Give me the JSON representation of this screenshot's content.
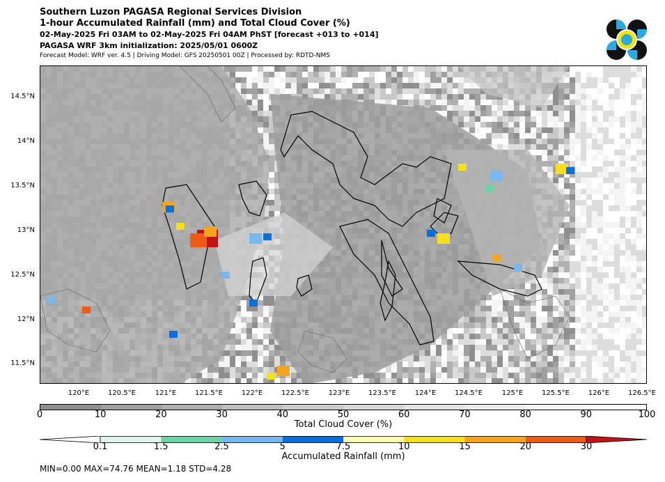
{
  "header": {
    "title": "Southern Luzon PAGASA Regional Services Division",
    "subtitle": "1-hour Accumulated Rainfall (mm) and Total Cloud Cover (%)",
    "period": "02-May-2025 Fri 03AM to 02-May-2025 Fri 04AM PhST [forecast +013 to +014]",
    "init": "PAGASA WRF 3km initialization: 2025/05/01 0600Z",
    "model": "Forecast Model: WRF ver. 4.5 | Driving Model: GFS 20250501 00Z | Processed by: RDTD-NMS"
  },
  "logo": {
    "name": "pagasa-logo",
    "colors": [
      "#000000",
      "#29aae1",
      "#f5e400"
    ]
  },
  "map": {
    "lat_labels": [
      "14.5°N",
      "14°N",
      "13.5°N",
      "13°N",
      "12.5°N",
      "12°N",
      "11.5°N"
    ],
    "lon_labels": [
      "120°E",
      "120.5°E",
      "121°E",
      "121.5°E",
      "122°E",
      "122.5°E",
      "123°E",
      "123.5°E",
      "124°E",
      "124.5°E",
      "125°E",
      "125.5°E",
      "126°E",
      "126.5°E"
    ]
  },
  "cloud_colorbar": {
    "ticks": [
      "0",
      "10",
      "20",
      "30",
      "40",
      "50",
      "60",
      "70",
      "80",
      "90",
      "100"
    ],
    "label": "Total Cloud Cover (%)",
    "colors": [
      "#8f8f8f",
      "#a0a0a0",
      "#b0b0b0",
      "#bfbfbf",
      "#cccccc",
      "#d8d8d8",
      "#e3e3e3",
      "#ececec",
      "#f5f5f5",
      "#fcfcfc"
    ]
  },
  "rain_colorbar": {
    "ticks": [
      "0.1",
      "1.5",
      "2.5",
      "5",
      "7.5",
      "10",
      "15",
      "20",
      "30"
    ],
    "label": "Accumulated Rainfall (mm)",
    "colors": [
      "#ffffff",
      "#dff5ee",
      "#6fd3a8",
      "#78b8ee",
      "#0a6fde",
      "#fffbb3",
      "#f6df1c",
      "#f5a51c",
      "#ee5b14",
      "#c01414"
    ]
  },
  "stats": "MIN=0.00   MAX=74.76   MEAN=1.18   STD=4.28"
}
